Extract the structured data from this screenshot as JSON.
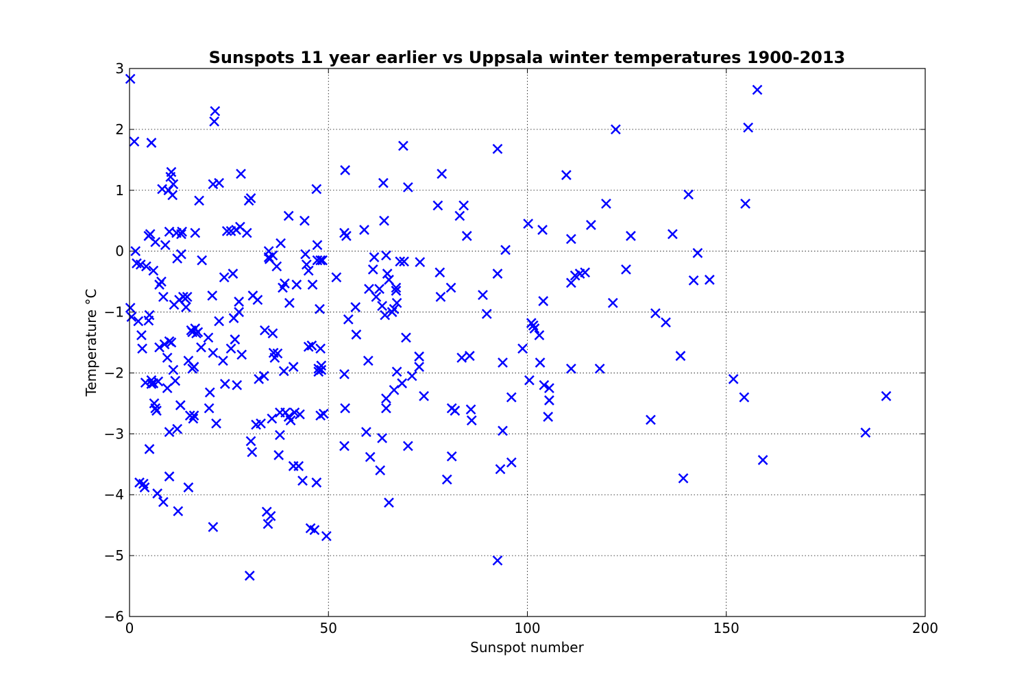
{
  "chart_data": {
    "type": "scatter",
    "title": "Sunspots 11 year earlier vs Uppsala winter temperatures 1900-2013",
    "xlabel": "Sunspot number",
    "ylabel": "Temperature °C",
    "xlim": [
      0,
      200
    ],
    "ylim": [
      -6,
      3
    ],
    "xticks": [
      0,
      50,
      100,
      150,
      200
    ],
    "xtick_labels": [
      "0",
      "50",
      "100",
      "150",
      "200"
    ],
    "yticks": [
      -6,
      -5,
      -4,
      -3,
      -2,
      -1,
      0,
      1,
      2,
      3
    ],
    "ytick_labels": [
      "−6",
      "−5",
      "−4",
      "−3",
      "−2",
      "−1",
      "0",
      "1",
      "2",
      "3"
    ],
    "grid": true,
    "marker": "x",
    "color": "#0000ff",
    "points": [
      [
        0.2,
        2.83
      ],
      [
        0.2,
        -0.93
      ],
      [
        0.5,
        -1.08
      ],
      [
        1.2,
        1.8
      ],
      [
        1.5,
        0.0
      ],
      [
        1.8,
        -0.2
      ],
      [
        2.2,
        -1.15
      ],
      [
        2.5,
        -3.8
      ],
      [
        2.8,
        -0.22
      ],
      [
        3.0,
        -1.38
      ],
      [
        3.2,
        -1.6
      ],
      [
        3.5,
        -3.82
      ],
      [
        3.8,
        -3.88
      ],
      [
        4.0,
        -2.16
      ],
      [
        4.2,
        -0.25
      ],
      [
        4.8,
        0.25
      ],
      [
        4.8,
        -1.14
      ],
      [
        5.0,
        -1.05
      ],
      [
        5.0,
        -3.25
      ],
      [
        5.2,
        0.28
      ],
      [
        5.5,
        -2.12
      ],
      [
        5.5,
        -2.18
      ],
      [
        5.5,
        1.78
      ],
      [
        6.0,
        -0.32
      ],
      [
        6.0,
        -2.17
      ],
      [
        6.2,
        -2.5
      ],
      [
        6.5,
        0.15
      ],
      [
        6.5,
        -2.58
      ],
      [
        6.8,
        -2.62
      ],
      [
        7.0,
        -3.98
      ],
      [
        7.2,
        -2.14
      ],
      [
        7.5,
        -1.58
      ],
      [
        7.5,
        -0.55
      ],
      [
        8.0,
        -0.5
      ],
      [
        8.2,
        1.02
      ],
      [
        8.5,
        -0.75
      ],
      [
        8.5,
        -4.12
      ],
      [
        8.8,
        -1.53
      ],
      [
        9.0,
        0.1
      ],
      [
        9.5,
        -1.75
      ],
      [
        9.5,
        -2.25
      ],
      [
        9.8,
        1.0
      ],
      [
        10.0,
        -1.48
      ],
      [
        10.0,
        0.32
      ],
      [
        10.0,
        -2.97
      ],
      [
        10.0,
        -3.7
      ],
      [
        10.3,
        1.22
      ],
      [
        10.5,
        1.3
      ],
      [
        10.5,
        -1.5
      ],
      [
        10.8,
        0.92
      ],
      [
        11.0,
        1.1
      ],
      [
        11.0,
        -1.95
      ],
      [
        11.2,
        -0.88
      ],
      [
        11.5,
        -2.13
      ],
      [
        11.8,
        0.3
      ],
      [
        12.0,
        -0.12
      ],
      [
        12.0,
        -2.92
      ],
      [
        12.2,
        -4.27
      ],
      [
        12.5,
        -0.8
      ],
      [
        12.8,
        -2.53
      ],
      [
        13.0,
        0.28
      ],
      [
        13.0,
        -0.05
      ],
      [
        13.2,
        0.32
      ],
      [
        13.5,
        -0.75
      ],
      [
        14.0,
        -0.78
      ],
      [
        14.2,
        -0.92
      ],
      [
        14.5,
        -0.75
      ],
      [
        14.8,
        -1.8
      ],
      [
        14.8,
        -3.88
      ],
      [
        15.2,
        -2.7
      ],
      [
        15.5,
        -1.3
      ],
      [
        15.8,
        -1.33
      ],
      [
        15.8,
        -1.93
      ],
      [
        16.0,
        -2.75
      ],
      [
        16.2,
        -1.9
      ],
      [
        16.2,
        -2.7
      ],
      [
        16.5,
        -1.27
      ],
      [
        16.5,
        0.3
      ],
      [
        16.8,
        -1.35
      ],
      [
        17.2,
        -1.33
      ],
      [
        17.5,
        0.83
      ],
      [
        18.0,
        -1.58
      ],
      [
        18.2,
        -0.15
      ],
      [
        19.8,
        -1.42
      ],
      [
        20.0,
        -2.58
      ],
      [
        20.2,
        -2.32
      ],
      [
        20.8,
        -0.73
      ],
      [
        21.0,
        -1.67
      ],
      [
        21.0,
        1.1
      ],
      [
        21.0,
        -4.53
      ],
      [
        21.3,
        2.13
      ],
      [
        21.5,
        2.3
      ],
      [
        21.8,
        -2.83
      ],
      [
        22.5,
        -1.15
      ],
      [
        22.5,
        1.12
      ],
      [
        23.5,
        -1.8
      ],
      [
        23.8,
        -0.43
      ],
      [
        24.0,
        -2.18
      ],
      [
        24.5,
        0.33
      ],
      [
        25.5,
        -1.6
      ],
      [
        25.5,
        0.33
      ],
      [
        26.0,
        -0.37
      ],
      [
        26.2,
        -1.1
      ],
      [
        26.5,
        -1.45
      ],
      [
        26.8,
        0.35
      ],
      [
        27.0,
        -2.2
      ],
      [
        27.5,
        -1.0
      ],
      [
        27.5,
        -0.83
      ],
      [
        27.8,
        0.4
      ],
      [
        28.0,
        1.27
      ],
      [
        28.2,
        -1.7
      ],
      [
        29.5,
        0.3
      ],
      [
        30.0,
        0.83
      ],
      [
        30.2,
        -5.33
      ],
      [
        30.5,
        0.87
      ],
      [
        30.5,
        -3.12
      ],
      [
        30.8,
        -3.3
      ],
      [
        31.0,
        -0.73
      ],
      [
        31.8,
        -2.85
      ],
      [
        32.2,
        -0.8
      ],
      [
        32.5,
        -2.1
      ],
      [
        33.0,
        -2.83
      ],
      [
        33.8,
        -2.05
      ],
      [
        34.0,
        -1.3
      ],
      [
        34.5,
        -4.28
      ],
      [
        34.8,
        -4.48
      ],
      [
        35.0,
        -0.1
      ],
      [
        35.0,
        0.0
      ],
      [
        35.2,
        -0.13
      ],
      [
        35.5,
        -4.35
      ],
      [
        35.8,
        -2.75
      ],
      [
        36.0,
        -0.07
      ],
      [
        36.0,
        -1.35
      ],
      [
        36.2,
        -1.67
      ],
      [
        36.5,
        -1.75
      ],
      [
        37.0,
        -0.25
      ],
      [
        37.2,
        -1.68
      ],
      [
        37.5,
        -3.35
      ],
      [
        37.8,
        -2.65
      ],
      [
        37.8,
        -3.02
      ],
      [
        38.0,
        0.13
      ],
      [
        38.5,
        -0.6
      ],
      [
        38.8,
        -1.97
      ],
      [
        39.0,
        -0.53
      ],
      [
        39.2,
        -2.65
      ],
      [
        40.0,
        -2.72
      ],
      [
        40.0,
        0.58
      ],
      [
        40.2,
        -0.85
      ],
      [
        40.5,
        -2.78
      ],
      [
        41.2,
        -1.9
      ],
      [
        41.2,
        -3.53
      ],
      [
        41.5,
        -2.65
      ],
      [
        42.0,
        -0.55
      ],
      [
        42.5,
        -3.53
      ],
      [
        42.8,
        -2.68
      ],
      [
        43.5,
        -3.77
      ],
      [
        44.0,
        0.5
      ],
      [
        44.2,
        -0.05
      ],
      [
        44.5,
        -0.22
      ],
      [
        45.0,
        -0.32
      ],
      [
        45.0,
        -1.57
      ],
      [
        45.5,
        -4.55
      ],
      [
        45.8,
        -1.55
      ],
      [
        46.0,
        -0.55
      ],
      [
        46.5,
        -4.58
      ],
      [
        47.0,
        -3.8
      ],
      [
        47.0,
        1.02
      ],
      [
        47.2,
        0.1
      ],
      [
        47.2,
        -0.15
      ],
      [
        47.5,
        -1.93
      ],
      [
        47.5,
        -1.98
      ],
      [
        47.8,
        -0.95
      ],
      [
        48.0,
        -0.15
      ],
      [
        48.0,
        -1.6
      ],
      [
        48.0,
        -2.7
      ],
      [
        48.2,
        -1.88
      ],
      [
        48.2,
        -1.95
      ],
      [
        48.5,
        -0.15
      ],
      [
        48.8,
        -2.67
      ],
      [
        49.5,
        -4.68
      ],
      [
        52.0,
        -0.43
      ],
      [
        54.0,
        -2.02
      ],
      [
        54.0,
        -3.2
      ],
      [
        54.0,
        0.3
      ],
      [
        54.2,
        1.33
      ],
      [
        54.2,
        -2.58
      ],
      [
        54.5,
        0.25
      ],
      [
        55.0,
        -1.12
      ],
      [
        56.8,
        -0.92
      ],
      [
        57.0,
        -1.37
      ],
      [
        59.0,
        0.35
      ],
      [
        59.5,
        -2.97
      ],
      [
        60.0,
        -1.8
      ],
      [
        60.2,
        -0.62
      ],
      [
        60.5,
        -3.38
      ],
      [
        61.2,
        -0.3
      ],
      [
        61.5,
        -0.1
      ],
      [
        62.0,
        -0.75
      ],
      [
        62.8,
        -0.62
      ],
      [
        63.0,
        -3.6
      ],
      [
        63.5,
        -0.9
      ],
      [
        63.5,
        -3.07
      ],
      [
        63.8,
        1.12
      ],
      [
        64.0,
        0.5
      ],
      [
        64.2,
        -1.05
      ],
      [
        64.5,
        -0.07
      ],
      [
        64.5,
        -2.42
      ],
      [
        64.5,
        -2.58
      ],
      [
        64.8,
        -0.37
      ],
      [
        65.2,
        -0.47
      ],
      [
        65.2,
        -4.13
      ],
      [
        66.0,
        -1.0
      ],
      [
        66.5,
        -2.28
      ],
      [
        66.5,
        -0.95
      ],
      [
        67.0,
        -0.6
      ],
      [
        67.0,
        -0.65
      ],
      [
        67.2,
        -0.85
      ],
      [
        67.2,
        -1.98
      ],
      [
        68.0,
        -0.17
      ],
      [
        68.5,
        -2.17
      ],
      [
        68.8,
        1.73
      ],
      [
        69.0,
        -0.17
      ],
      [
        69.5,
        -1.42
      ],
      [
        70.0,
        -3.2
      ],
      [
        70.0,
        1.05
      ],
      [
        71.0,
        -2.05
      ],
      [
        72.8,
        -1.73
      ],
      [
        72.8,
        -1.9
      ],
      [
        73.0,
        -0.18
      ],
      [
        74.0,
        -2.38
      ],
      [
        77.5,
        0.75
      ],
      [
        78.0,
        -0.35
      ],
      [
        78.2,
        -0.75
      ],
      [
        78.5,
        1.27
      ],
      [
        79.8,
        -3.75
      ],
      [
        80.8,
        -0.6
      ],
      [
        81.0,
        -2.58
      ],
      [
        81.0,
        -3.37
      ],
      [
        81.8,
        -2.62
      ],
      [
        83.0,
        0.58
      ],
      [
        83.5,
        -1.75
      ],
      [
        84.0,
        0.75
      ],
      [
        84.8,
        0.25
      ],
      [
        85.5,
        -1.72
      ],
      [
        85.8,
        -2.6
      ],
      [
        86.0,
        -2.78
      ],
      [
        88.8,
        -0.72
      ],
      [
        89.8,
        -1.03
      ],
      [
        92.5,
        1.68
      ],
      [
        92.5,
        -0.37
      ],
      [
        92.5,
        -5.08
      ],
      [
        93.2,
        -3.58
      ],
      [
        93.8,
        -2.95
      ],
      [
        93.8,
        -1.83
      ],
      [
        94.5,
        0.02
      ],
      [
        96.0,
        -2.4
      ],
      [
        96.0,
        -3.47
      ],
      [
        98.8,
        -1.6
      ],
      [
        100.2,
        0.45
      ],
      [
        100.5,
        -2.12
      ],
      [
        101.0,
        -1.18
      ],
      [
        101.5,
        -1.22
      ],
      [
        101.8,
        -1.27
      ],
      [
        103.0,
        -1.38
      ],
      [
        103.2,
        -1.83
      ],
      [
        103.8,
        0.35
      ],
      [
        104.0,
        -0.82
      ],
      [
        104.2,
        -2.2
      ],
      [
        105.2,
        -2.72
      ],
      [
        105.5,
        -2.25
      ],
      [
        105.5,
        -2.45
      ],
      [
        109.8,
        1.25
      ],
      [
        111.0,
        0.2
      ],
      [
        111.0,
        -0.52
      ],
      [
        111.0,
        -1.93
      ],
      [
        112.0,
        -0.4
      ],
      [
        113.2,
        -0.37
      ],
      [
        114.5,
        -0.35
      ],
      [
        116.0,
        0.43
      ],
      [
        118.2,
        -1.93
      ],
      [
        119.8,
        0.78
      ],
      [
        121.5,
        -0.85
      ],
      [
        122.2,
        2.0
      ],
      [
        124.8,
        -0.3
      ],
      [
        126.0,
        0.25
      ],
      [
        131.0,
        -2.77
      ],
      [
        132.2,
        -1.02
      ],
      [
        134.8,
        -1.17
      ],
      [
        136.5,
        0.28
      ],
      [
        138.5,
        -1.72
      ],
      [
        139.2,
        -3.73
      ],
      [
        140.5,
        0.93
      ],
      [
        141.8,
        -0.48
      ],
      [
        142.8,
        -0.03
      ],
      [
        145.8,
        -0.47
      ],
      [
        151.8,
        -2.1
      ],
      [
        154.5,
        -2.4
      ],
      [
        154.8,
        0.78
      ],
      [
        155.5,
        2.03
      ],
      [
        157.8,
        2.65
      ],
      [
        159.2,
        -3.43
      ],
      [
        185.0,
        -2.98
      ],
      [
        190.2,
        -2.38
      ]
    ]
  }
}
